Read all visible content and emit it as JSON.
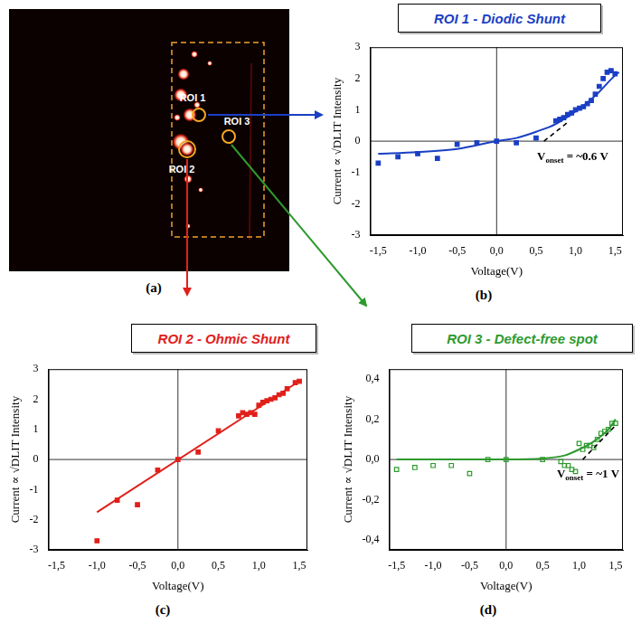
{
  "image_panel": {
    "panel_label": "(a)",
    "regions": [
      {
        "label": "ROI 1"
      },
      {
        "label": "ROI 2"
      },
      {
        "label": "ROI 3"
      }
    ]
  },
  "chart_data": [
    {
      "type": "scatter",
      "panel_label": "(b)",
      "title": "ROI 1 - Diodic Shunt",
      "x_label": "Voltage(V)",
      "y_label": "Current ∝ √DLIT Intensity",
      "annotation": {
        "base": "V",
        "subscript": "onset",
        "text": " = ~0.6 V"
      },
      "xlim": [
        -1.6,
        1.6
      ],
      "xticks": [
        {
          "value": -1.5,
          "label": "-1,5"
        },
        {
          "value": -1.0,
          "label": "-1,0"
        },
        {
          "value": -0.5,
          "label": "-0,5"
        },
        {
          "value": 0,
          "label": "0,0"
        },
        {
          "value": 0.5,
          "label": "0,5"
        },
        {
          "value": 1.0,
          "label": "1,0"
        },
        {
          "value": 1.5,
          "label": "1,5"
        }
      ],
      "ylim": [
        -3,
        3
      ],
      "yticks": [
        -3,
        -2,
        -1,
        0,
        1,
        2,
        3
      ],
      "series": [
        {
          "type": "scatter",
          "marker": "square",
          "color": "#1a3fc4",
          "x": [
            -1.5,
            -1.25,
            -1.0,
            -0.75,
            -0.5,
            -0.25,
            0,
            0.25,
            0.5,
            0.75,
            0.8,
            0.85,
            0.9,
            0.95,
            1.0,
            1.05,
            1.1,
            1.15,
            1.2,
            1.25,
            1.3,
            1.35,
            1.4,
            1.45,
            1.5
          ],
          "values": [
            -0.7,
            -0.5,
            -0.4,
            -0.55,
            -0.1,
            -0.05,
            0,
            -0.05,
            0.1,
            0.65,
            0.7,
            0.75,
            0.85,
            0.9,
            1.0,
            1.05,
            1.1,
            1.2,
            1.3,
            1.5,
            1.75,
            2.0,
            2.2,
            2.25,
            2.15
          ]
        },
        {
          "type": "line",
          "line_style": "solid",
          "color": "#1a3fc4",
          "x": [
            -1.5,
            -1.0,
            -0.5,
            0,
            0.25,
            0.5,
            0.75,
            1.0,
            1.25,
            1.5,
            1.55
          ],
          "values": [
            -0.4,
            -0.35,
            -0.25,
            0,
            0.1,
            0.3,
            0.55,
            0.95,
            1.45,
            2.1,
            2.2
          ]
        },
        {
          "type": "line",
          "line_style": "dashed",
          "color": "#000000",
          "x": [
            0.6,
            0.9
          ],
          "values": [
            0,
            0.6
          ]
        }
      ]
    },
    {
      "type": "scatter",
      "panel_label": "(c)",
      "title": "ROI 2  - Ohmic Shunt",
      "x_label": "Voltage(V)",
      "y_label": "Current ∝ √DLIT Intensity",
      "xlim": [
        -1.6,
        1.6
      ],
      "xticks": [
        {
          "value": -1.5,
          "label": "-1,5"
        },
        {
          "value": -1.0,
          "label": "-1,0"
        },
        {
          "value": -0.5,
          "label": "-0,5"
        },
        {
          "value": 0,
          "label": "0,0"
        },
        {
          "value": 0.5,
          "label": "0,5"
        },
        {
          "value": 1.0,
          "label": "1,0"
        },
        {
          "value": 1.5,
          "label": "1,5"
        }
      ],
      "ylim": [
        -3,
        3
      ],
      "yticks": [
        -3,
        -2,
        -1,
        0,
        1,
        2,
        3
      ],
      "series": [
        {
          "type": "scatter",
          "marker": "square",
          "color": "#e0201b",
          "x": [
            -1.0,
            -0.75,
            -0.5,
            -0.25,
            0,
            0.25,
            0.5,
            0.75,
            0.8,
            0.85,
            0.9,
            0.95,
            1.0,
            1.05,
            1.1,
            1.15,
            1.2,
            1.25,
            1.3,
            1.35,
            1.45,
            1.5
          ],
          "values": [
            -2.7,
            -1.35,
            -1.5,
            -0.35,
            0,
            0.25,
            0.95,
            1.45,
            1.55,
            1.5,
            1.55,
            1.5,
            1.8,
            1.9,
            1.95,
            2.0,
            2.05,
            2.15,
            2.2,
            2.35,
            2.55,
            2.6
          ]
        },
        {
          "type": "line",
          "line_style": "solid",
          "color": "#e0201b",
          "x": [
            -1.0,
            1.5
          ],
          "values": [
            -1.75,
            2.6
          ]
        }
      ]
    },
    {
      "type": "scatter",
      "panel_label": "(d)",
      "title": "ROI 3 - Defect-free spot",
      "x_label": "Voltage(V)",
      "y_label": "Current ∝ √DLIT Intensity",
      "annotation": {
        "base": "V",
        "subscript": "onset",
        "text": " = ~1 V"
      },
      "xlim": [
        -1.6,
        1.6
      ],
      "xticks": [
        {
          "value": -1.5,
          "label": "-1,5"
        },
        {
          "value": -1.0,
          "label": "-1,0"
        },
        {
          "value": -0.5,
          "label": "-0,5"
        },
        {
          "value": 0,
          "label": "0,0"
        },
        {
          "value": 0.5,
          "label": "0,5"
        },
        {
          "value": 1.0,
          "label": "1,0"
        },
        {
          "value": 1.5,
          "label": "1,5"
        }
      ],
      "ylim": [
        -0.45,
        0.45
      ],
      "yticks": [
        {
          "value": -0.4,
          "label": "-0,4"
        },
        {
          "value": -0.2,
          "label": "-0,2"
        },
        {
          "value": 0,
          "label": "0,0"
        },
        {
          "value": 0.2,
          "label": "0,2"
        },
        {
          "value": 0.4,
          "label": "0,4"
        }
      ],
      "series": [
        {
          "type": "scatter",
          "marker": "square_open",
          "color": "#2e9a2e",
          "x": [
            -1.5,
            -1.25,
            -1.0,
            -0.75,
            -0.5,
            -0.25,
            0,
            0.5,
            0.75,
            0.8,
            0.85,
            0.9,
            0.95,
            1.0,
            1.05,
            1.1,
            1.15,
            1.2,
            1.25,
            1.3,
            1.35,
            1.4,
            1.45,
            1.5
          ],
          "values": [
            -0.05,
            -0.04,
            -0.03,
            -0.03,
            -0.07,
            0,
            0,
            0,
            -0.01,
            -0.03,
            -0.03,
            -0.05,
            -0.06,
            0.08,
            0.05,
            0.07,
            0.07,
            0.06,
            0.1,
            0.13,
            0.14,
            0.15,
            0.18,
            0.18
          ]
        },
        {
          "type": "line",
          "line_style": "solid",
          "color": "#2e9a2e",
          "x": [
            -1.5,
            0,
            0.5,
            0.8,
            1.0,
            1.2,
            1.4,
            1.5
          ],
          "values": [
            0,
            0,
            0.005,
            0.02,
            0.05,
            0.09,
            0.15,
            0.2
          ]
        },
        {
          "type": "line",
          "line_style": "dashed",
          "color": "#000000",
          "x": [
            1.05,
            1.5
          ],
          "values": [
            0,
            0.17
          ]
        }
      ]
    }
  ]
}
